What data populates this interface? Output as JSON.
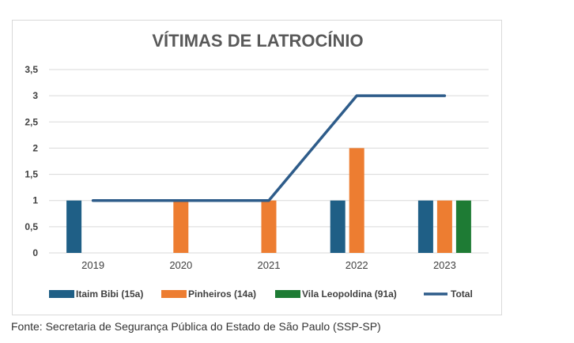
{
  "chart_data": {
    "type": "bar",
    "title": "VÍTIMAS DE LATROCÍNIO",
    "categories": [
      "2019",
      "2020",
      "2021",
      "2022",
      "2023"
    ],
    "ylim": [
      0,
      3.5
    ],
    "yticks": [
      "0",
      "0,5",
      "1",
      "1,5",
      "2",
      "2,5",
      "3",
      "3,5"
    ],
    "grid": true,
    "legend_position": "bottom",
    "series": [
      {
        "name": "Itaim Bibi (15a)",
        "kind": "bar",
        "color": "#1f5f86",
        "values": [
          1,
          0,
          0,
          1,
          1
        ]
      },
      {
        "name": "Pinheiros (14a)",
        "kind": "bar",
        "color": "#ed7d31",
        "values": [
          0,
          1,
          1,
          2,
          1
        ]
      },
      {
        "name": "Vila Leopoldina (91a)",
        "kind": "bar",
        "color": "#1e7b34",
        "values": [
          0,
          0,
          0,
          0,
          1
        ]
      },
      {
        "name": "Total",
        "kind": "line",
        "color": "#2e5c8a",
        "values": [
          1,
          1,
          1,
          3,
          3
        ]
      }
    ]
  },
  "footer": {
    "source": "Fonte: Secretaria de Segurança Pública do Estado de São Paulo (SSP-SP)"
  }
}
